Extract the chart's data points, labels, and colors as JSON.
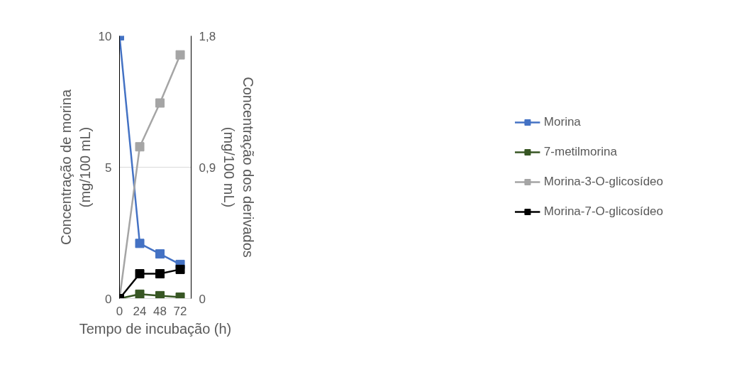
{
  "chart_data": {
    "type": "line",
    "xlabel": "Tempo de incubação (h)",
    "ylabel": "Concentração de morina\n(mg/100 mL)",
    "y2label": "Concentração dos derivados\n(mg/100 mL)",
    "x": [
      0,
      24,
      48,
      72
    ],
    "xlim": [
      0,
      85
    ],
    "xticks": [
      0,
      24,
      48,
      72
    ],
    "ylim": [
      0,
      10
    ],
    "yticks": [
      0,
      5,
      10
    ],
    "y2lim": [
      0,
      1.8
    ],
    "y2ticks": [
      0,
      {
        "value": 0.9,
        "label": "0,9"
      },
      {
        "value": 1.8,
        "label": "1,8"
      }
    ],
    "grid": "y",
    "legend": "right",
    "marker": "square",
    "line_style": "solid",
    "series": [
      {
        "name": "Morina",
        "color": "#4472c4",
        "values": [
          10,
          2.1,
          1.7,
          1.3
        ]
      },
      {
        "name": "7-metilmorina",
        "color": "#375623",
        "axis": "y2",
        "values": [
          0,
          0.03,
          0.02,
          0.01
        ]
      },
      {
        "name": "Morina-3-O-glicosídeo",
        "color": "#a5a5a5",
        "axis": "y2",
        "values": [
          0,
          1.04,
          1.34,
          1.67
        ]
      },
      {
        "name": "Morina-7-O-glicosídeo",
        "color": "#000000",
        "axis": "y2",
        "values": [
          0,
          0.17,
          0.17,
          0.2
        ]
      }
    ]
  }
}
